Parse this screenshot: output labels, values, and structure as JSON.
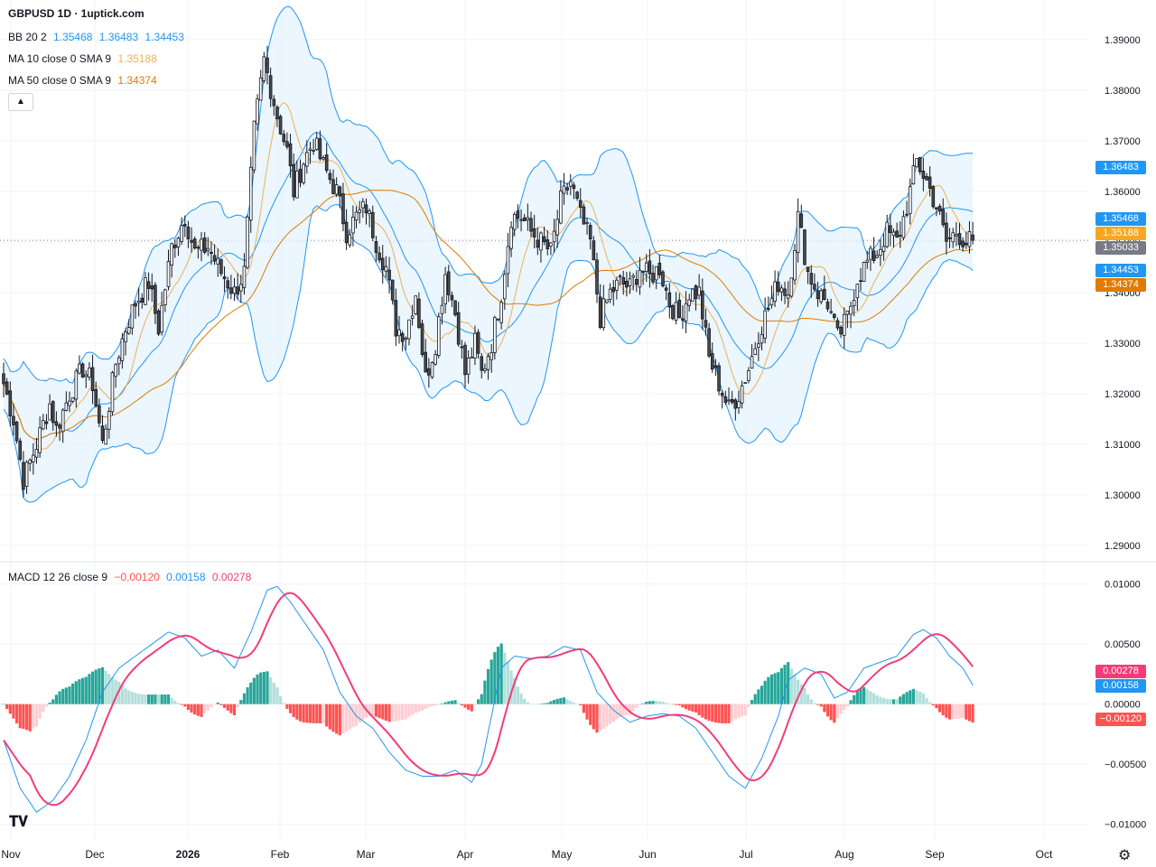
{
  "header": {
    "title": "GBPUSD 1D · 1uptick.com",
    "bb_label": "BB 20 2",
    "bb_values": [
      "1.35468",
      "1.36483",
      "1.34453"
    ],
    "ma10_label": "MA 10 close 0 SMA 9",
    "ma10_value": "1.35188",
    "ma50_label": "MA 50 close 0 SMA 9",
    "ma50_value": "1.34374",
    "macd_label": "MACD 12 26 close 9",
    "macd_values": [
      "−0.00120",
      "0.00158",
      "0.00278"
    ],
    "collapse_icon": "chevron-up-icon"
  },
  "colors": {
    "up_candle": "#ffffff",
    "down_candle": "#4a4a4a",
    "bb_line": "#2196f3",
    "bb_fill": "#e3f2fd",
    "ma10": "#f0b055",
    "ma50": "#e07b00",
    "macd_line": "#2196f3",
    "signal_line": "#f23c7a",
    "hist_up_strong": "#26a69a",
    "hist_up_weak": "#b2dfdb",
    "hist_down_strong": "#ff5252",
    "hist_down_weak": "#ffcdd2"
  },
  "chart_data": {
    "type": "candlestick",
    "symbol": "GBPUSD",
    "timeframe": "1D",
    "x_labels": [
      "Nov",
      "Dec",
      "2026",
      "Feb",
      "Mar",
      "Apr",
      "May",
      "Jun",
      "Jul",
      "Aug",
      "Sep",
      "Oct"
    ],
    "price_axis": {
      "ticks": [
        "1.39000",
        "1.38000",
        "1.37000",
        "1.36000",
        "1.35000",
        "1.34000",
        "1.33000",
        "1.32000",
        "1.31000",
        "1.30000",
        "1.29000"
      ],
      "ylim": [
        1.2875,
        1.3925
      ]
    },
    "macd_axis": {
      "ticks": [
        "0.01000",
        "0.00500",
        "0.00000",
        "−0.00500",
        "−0.01000"
      ],
      "ylim": [
        -0.0107,
        0.0105
      ]
    },
    "price_tags": [
      {
        "label": "1.36483",
        "value": 1.36483,
        "color": "#2196f3"
      },
      {
        "label": "1.35468",
        "value": 1.35468,
        "color": "#2196f3"
      },
      {
        "label": "1.35188",
        "value": 1.35188,
        "color": "#f5a623"
      },
      {
        "label": "1.35033",
        "value": 1.35033,
        "color": "#787b86"
      },
      {
        "label": "1.34453",
        "value": 1.34453,
        "color": "#2196f3"
      },
      {
        "label": "1.34374",
        "value": 1.34374,
        "color": "#e07b00"
      }
    ],
    "macd_tags": [
      {
        "label": "0.00278",
        "value": 0.00278,
        "color": "#f23c7a"
      },
      {
        "label": "0.00158",
        "value": 0.00158,
        "color": "#2196f3"
      },
      {
        "label": "−0.00120",
        "value": -0.0012,
        "color": "#ff5252"
      }
    ],
    "last_price": 1.35033,
    "close_anchors": [
      [
        0,
        1.322
      ],
      [
        3,
        1.315
      ],
      [
        6,
        1.303
      ],
      [
        10,
        1.31
      ],
      [
        14,
        1.318
      ],
      [
        16,
        1.313
      ],
      [
        20,
        1.32
      ],
      [
        24,
        1.325
      ],
      [
        27,
        1.322
      ],
      [
        30,
        1.31
      ],
      [
        34,
        1.326
      ],
      [
        37,
        1.333
      ],
      [
        40,
        1.338
      ],
      [
        44,
        1.342
      ],
      [
        47,
        1.333
      ],
      [
        51,
        1.349
      ],
      [
        55,
        1.355
      ],
      [
        58,
        1.348
      ],
      [
        62,
        1.349
      ],
      [
        66,
        1.344
      ],
      [
        70,
        1.34
      ],
      [
        73,
        1.344
      ],
      [
        76,
        1.372
      ],
      [
        79,
        1.386
      ],
      [
        83,
        1.375
      ],
      [
        86,
        1.368
      ],
      [
        88,
        1.36
      ],
      [
        91,
        1.366
      ],
      [
        94,
        1.37
      ],
      [
        97,
        1.365
      ],
      [
        101,
        1.36
      ],
      [
        104,
        1.352
      ],
      [
        107,
        1.355
      ],
      [
        110,
        1.357
      ],
      [
        113,
        1.35
      ],
      [
        116,
        1.345
      ],
      [
        119,
        1.333
      ],
      [
        122,
        1.332
      ],
      [
        125,
        1.34
      ],
      [
        128,
        1.323
      ],
      [
        131,
        1.33
      ],
      [
        134,
        1.344
      ],
      [
        137,
        1.336
      ],
      [
        140,
        1.324
      ],
      [
        143,
        1.33
      ],
      [
        145,
        1.324
      ],
      [
        148,
        1.33
      ],
      [
        151,
        1.34
      ],
      [
        154,
        1.355
      ],
      [
        157,
        1.355
      ],
      [
        160,
        1.352
      ],
      [
        163,
        1.35
      ],
      [
        166,
        1.348
      ],
      [
        169,
        1.358
      ],
      [
        172,
        1.362
      ],
      [
        175,
        1.355
      ],
      [
        178,
        1.35
      ],
      [
        181,
        1.335
      ],
      [
        184,
        1.34
      ],
      [
        187,
        1.342
      ],
      [
        190,
        1.341
      ],
      [
        193,
        1.345
      ],
      [
        196,
        1.343
      ],
      [
        199,
        1.345
      ],
      [
        202,
        1.338
      ],
      [
        205,
        1.335
      ],
      [
        208,
        1.34
      ],
      [
        211,
        1.34
      ],
      [
        214,
        1.327
      ],
      [
        217,
        1.322
      ],
      [
        220,
        1.317
      ],
      [
        223,
        1.32
      ],
      [
        226,
        1.325
      ],
      [
        229,
        1.332
      ],
      [
        232,
        1.337
      ],
      [
        235,
        1.342
      ],
      [
        238,
        1.34
      ],
      [
        241,
        1.355
      ],
      [
        244,
        1.344
      ],
      [
        247,
        1.34
      ],
      [
        250,
        1.338
      ],
      [
        253,
        1.331
      ],
      [
        256,
        1.335
      ],
      [
        259,
        1.343
      ],
      [
        262,
        1.346
      ],
      [
        265,
        1.348
      ],
      [
        268,
        1.352
      ],
      [
        271,
        1.35
      ],
      [
        274,
        1.357
      ],
      [
        277,
        1.366
      ],
      [
        280,
        1.362
      ],
      [
        283,
        1.357
      ],
      [
        286,
        1.35
      ],
      [
        289,
        1.352
      ],
      [
        292,
        1.35
      ],
      [
        294,
        1.35033
      ]
    ],
    "macd_anchors": [
      [
        0,
        -0.003
      ],
      [
        5,
        -0.007
      ],
      [
        10,
        -0.009
      ],
      [
        15,
        -0.008
      ],
      [
        20,
        -0.006
      ],
      [
        25,
        -0.003
      ],
      [
        30,
        0.001
      ],
      [
        35,
        0.003
      ],
      [
        40,
        0.004
      ],
      [
        45,
        0.005
      ],
      [
        50,
        0.006
      ],
      [
        55,
        0.0055
      ],
      [
        60,
        0.004
      ],
      [
        65,
        0.0045
      ],
      [
        70,
        0.003
      ],
      [
        75,
        0.006
      ],
      [
        80,
        0.0095
      ],
      [
        83,
        0.0098
      ],
      [
        87,
        0.0085
      ],
      [
        92,
        0.0065
      ],
      [
        97,
        0.0045
      ],
      [
        102,
        0.001
      ],
      [
        107,
        -0.001
      ],
      [
        112,
        -0.002
      ],
      [
        117,
        -0.004
      ],
      [
        122,
        -0.0055
      ],
      [
        127,
        -0.006
      ],
      [
        132,
        -0.006
      ],
      [
        137,
        -0.0055
      ],
      [
        142,
        -0.0065
      ],
      [
        145,
        -0.005
      ],
      [
        148,
        -0.001
      ],
      [
        151,
        0.003
      ],
      [
        155,
        0.004
      ],
      [
        160,
        0.0038
      ],
      [
        165,
        0.004
      ],
      [
        170,
        0.0048
      ],
      [
        175,
        0.0045
      ],
      [
        180,
        0.001
      ],
      [
        185,
        -0.0005
      ],
      [
        190,
        -0.0015
      ],
      [
        195,
        -0.001
      ],
      [
        200,
        -0.0008
      ],
      [
        205,
        -0.001
      ],
      [
        210,
        -0.002
      ],
      [
        215,
        -0.004
      ],
      [
        220,
        -0.006
      ],
      [
        225,
        -0.007
      ],
      [
        230,
        -0.0045
      ],
      [
        235,
        -0.001
      ],
      [
        238,
        0.002
      ],
      [
        243,
        0.003
      ],
      [
        248,
        0.0025
      ],
      [
        252,
        0.0005
      ],
      [
        256,
        0.001
      ],
      [
        261,
        0.003
      ],
      [
        266,
        0.0035
      ],
      [
        271,
        0.004
      ],
      [
        276,
        0.0058
      ],
      [
        279,
        0.0062
      ],
      [
        283,
        0.0055
      ],
      [
        287,
        0.004
      ],
      [
        291,
        0.003
      ],
      [
        294,
        0.00158
      ]
    ],
    "n_bars": 295
  }
}
